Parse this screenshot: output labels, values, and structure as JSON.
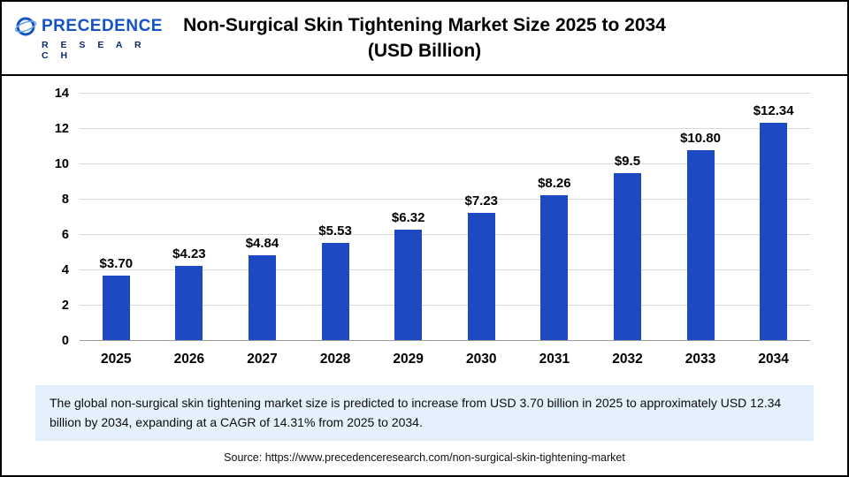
{
  "logo": {
    "word": "Precedence",
    "word_display": "PRECEDENCE",
    "sub": "R E S E A R C H"
  },
  "header": {
    "title_line1": "Non-Surgical Skin Tightening Market Size 2025 to 2034",
    "title_line2": "(USD Billion)"
  },
  "chart_data": {
    "type": "bar",
    "title": "Non-Surgical Skin Tightening Market Size 2025 to 2034 (USD Billion)",
    "categories": [
      "2025",
      "2026",
      "2027",
      "2028",
      "2029",
      "2030",
      "2031",
      "2032",
      "2033",
      "2034"
    ],
    "values": [
      3.7,
      4.23,
      4.84,
      5.53,
      6.32,
      7.23,
      8.26,
      9.5,
      10.8,
      12.34
    ],
    "labels": [
      "$3.70",
      "$4.23",
      "$4.84",
      "$5.53",
      "$6.32",
      "$7.23",
      "$8.26",
      "$9.5",
      "$10.80",
      "$12.34"
    ],
    "xlabel": "",
    "ylabel": "",
    "ylim": [
      0,
      14
    ],
    "yticks": [
      0,
      2,
      4,
      6,
      8,
      10,
      12,
      14
    ],
    "grid": true,
    "legend": "none",
    "bar_color": "#1d49c2"
  },
  "summary": {
    "text": "The global non-surgical skin tightening market size is predicted to increase from USD 3.70 billion in 2025 to approximately USD 12.34 billion by 2034, expanding at a CAGR of 14.31% from 2025 to 2034."
  },
  "source": {
    "text": "Source: https://www.precedenceresearch.com/non-surgical-skin-tightening-market"
  }
}
